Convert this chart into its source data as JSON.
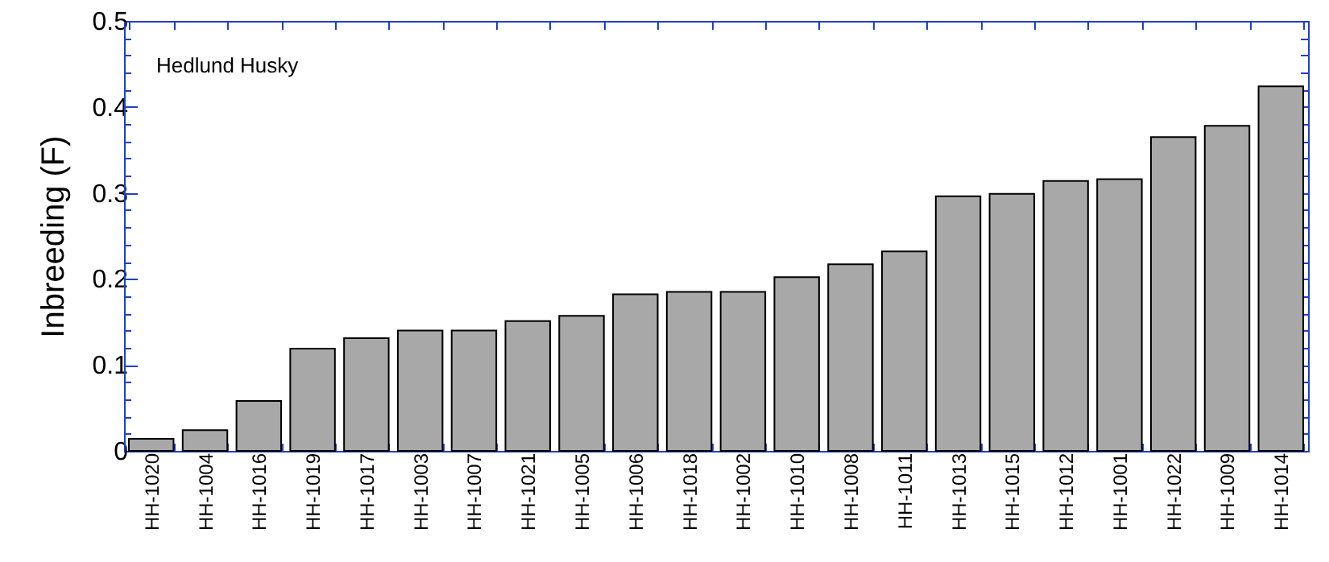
{
  "chart_data": {
    "type": "bar",
    "ylabel": "Inbreeding (F)",
    "annotations": [
      "Hedlund Husky"
    ],
    "categories": [
      "HH-1020",
      "HH-1004",
      "HH-1016",
      "HH-1019",
      "HH-1017",
      "HH-1003",
      "HH-1007",
      "HH-1021",
      "HH-1005",
      "HH-1006",
      "HH-1018",
      "HH-1002",
      "HH-1010",
      "HH-1008",
      "HH-1011",
      "HH-1013",
      "HH-1015",
      "HH-1012",
      "HH-1001",
      "HH-1022",
      "HH-1009",
      "HH-1014"
    ],
    "values": [
      0.014,
      0.024,
      0.058,
      0.119,
      0.131,
      0.14,
      0.14,
      0.151,
      0.157,
      0.182,
      0.185,
      0.185,
      0.202,
      0.217,
      0.232,
      0.296,
      0.299,
      0.314,
      0.316,
      0.365,
      0.378,
      0.424
    ],
    "color": "#a8a8a8",
    "ylim": [
      0,
      0.5
    ],
    "yticks": [
      0,
      0.1,
      0.2,
      0.3,
      0.4,
      0.5
    ],
    "grid": false
  }
}
